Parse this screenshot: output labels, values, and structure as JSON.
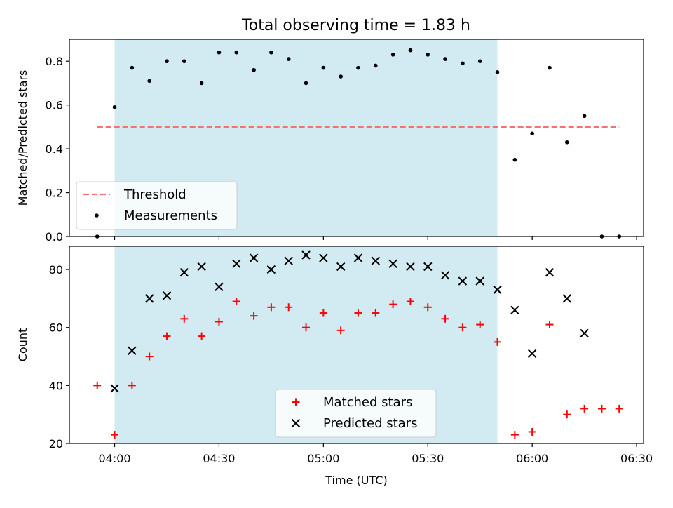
{
  "figure": {
    "title": "Total observing time = 1.83 h"
  },
  "chart_data": [
    {
      "type": "scatter",
      "ylabel": "Matched/Predicted stars",
      "xlabel": "",
      "ylim": [
        0.0,
        0.9
      ],
      "yticks": [
        0.0,
        0.2,
        0.4,
        0.6,
        0.8
      ],
      "ytick_labels": [
        "0.0",
        "0.2",
        "0.4",
        "0.6",
        "0.8"
      ],
      "xlim": [
        "03:47",
        "06:32"
      ],
      "xticks": [
        "04:00",
        "04:30",
        "05:00",
        "05:30",
        "06:00",
        "06:30"
      ],
      "xtick_labels_visible": false,
      "observing_window": {
        "start": "04:00",
        "end": "05:50",
        "color": "#add8e6"
      },
      "threshold": {
        "name": "Threshold",
        "value": 0.5,
        "x_start": "03:55",
        "x_end": "06:25",
        "color": "#f47272",
        "style": "dashed"
      },
      "series": [
        {
          "name": "Measurements",
          "marker": "dot",
          "color": "#000000",
          "points": [
            [
              "03:55",
              0.0
            ],
            [
              "04:00",
              0.59
            ],
            [
              "04:05",
              0.77
            ],
            [
              "04:10",
              0.71
            ],
            [
              "04:15",
              0.8
            ],
            [
              "04:20",
              0.8
            ],
            [
              "04:25",
              0.7
            ],
            [
              "04:30",
              0.84
            ],
            [
              "04:35",
              0.84
            ],
            [
              "04:40",
              0.76
            ],
            [
              "04:45",
              0.84
            ],
            [
              "04:50",
              0.81
            ],
            [
              "04:55",
              0.7
            ],
            [
              "05:00",
              0.77
            ],
            [
              "05:05",
              0.73
            ],
            [
              "05:10",
              0.77
            ],
            [
              "05:15",
              0.78
            ],
            [
              "05:20",
              0.83
            ],
            [
              "05:25",
              0.85
            ],
            [
              "05:30",
              0.83
            ],
            [
              "05:35",
              0.81
            ],
            [
              "05:40",
              0.79
            ],
            [
              "05:45",
              0.8
            ],
            [
              "05:50",
              0.75
            ],
            [
              "05:55",
              0.35
            ],
            [
              "06:00",
              0.47
            ],
            [
              "06:05",
              0.77
            ],
            [
              "06:10",
              0.43
            ],
            [
              "06:15",
              0.55
            ],
            [
              "06:20",
              0.0
            ],
            [
              "06:25",
              0.0
            ]
          ]
        }
      ],
      "legend": {
        "position": "lower-left",
        "entries": [
          "Threshold",
          "Measurements"
        ]
      }
    },
    {
      "type": "scatter",
      "ylabel": "Count",
      "xlabel": "Time (UTC)",
      "ylim": [
        20,
        88
      ],
      "yticks": [
        20,
        40,
        60,
        80
      ],
      "ytick_labels": [
        "20",
        "40",
        "60",
        "80"
      ],
      "xlim": [
        "03:47",
        "06:32"
      ],
      "xticks": [
        "04:00",
        "04:30",
        "05:00",
        "05:30",
        "06:00",
        "06:30"
      ],
      "xtick_labels": [
        "04:00",
        "04:30",
        "05:00",
        "05:30",
        "06:00",
        "06:30"
      ],
      "observing_window": {
        "start": "04:00",
        "end": "05:50",
        "color": "#add8e6"
      },
      "series": [
        {
          "name": "Matched stars",
          "marker": "plus",
          "color": "#ff0000",
          "points": [
            [
              "03:55",
              40
            ],
            [
              "04:00",
              23
            ],
            [
              "04:05",
              40
            ],
            [
              "04:10",
              50
            ],
            [
              "04:15",
              57
            ],
            [
              "04:20",
              63
            ],
            [
              "04:25",
              57
            ],
            [
              "04:30",
              62
            ],
            [
              "04:35",
              69
            ],
            [
              "04:40",
              64
            ],
            [
              "04:45",
              67
            ],
            [
              "04:50",
              67
            ],
            [
              "04:55",
              60
            ],
            [
              "05:00",
              65
            ],
            [
              "05:05",
              59
            ],
            [
              "05:10",
              65
            ],
            [
              "05:15",
              65
            ],
            [
              "05:20",
              68
            ],
            [
              "05:25",
              69
            ],
            [
              "05:30",
              67
            ],
            [
              "05:35",
              63
            ],
            [
              "05:40",
              60
            ],
            [
              "05:45",
              61
            ],
            [
              "05:50",
              55
            ],
            [
              "05:55",
              23
            ],
            [
              "06:00",
              24
            ],
            [
              "06:05",
              61
            ],
            [
              "06:10",
              30
            ],
            [
              "06:15",
              32
            ],
            [
              "06:20",
              32
            ],
            [
              "06:25",
              32
            ]
          ]
        },
        {
          "name": "Predicted stars",
          "marker": "x",
          "color": "#000000",
          "points": [
            [
              "04:00",
              39
            ],
            [
              "04:05",
              52
            ],
            [
              "04:10",
              70
            ],
            [
              "04:15",
              71
            ],
            [
              "04:20",
              79
            ],
            [
              "04:25",
              81
            ],
            [
              "04:30",
              74
            ],
            [
              "04:35",
              82
            ],
            [
              "04:40",
              84
            ],
            [
              "04:45",
              80
            ],
            [
              "04:50",
              83
            ],
            [
              "04:55",
              85
            ],
            [
              "05:00",
              84
            ],
            [
              "05:05",
              81
            ],
            [
              "05:10",
              84
            ],
            [
              "05:15",
              83
            ],
            [
              "05:20",
              82
            ],
            [
              "05:25",
              81
            ],
            [
              "05:30",
              81
            ],
            [
              "05:35",
              78
            ],
            [
              "05:40",
              76
            ],
            [
              "05:45",
              76
            ],
            [
              "05:50",
              73
            ],
            [
              "05:55",
              66
            ],
            [
              "06:00",
              51
            ],
            [
              "06:05",
              79
            ],
            [
              "06:10",
              70
            ],
            [
              "06:15",
              58
            ]
          ]
        }
      ],
      "legend": {
        "position": "lower-center",
        "entries": [
          "Matched stars",
          "Predicted stars"
        ]
      }
    }
  ]
}
